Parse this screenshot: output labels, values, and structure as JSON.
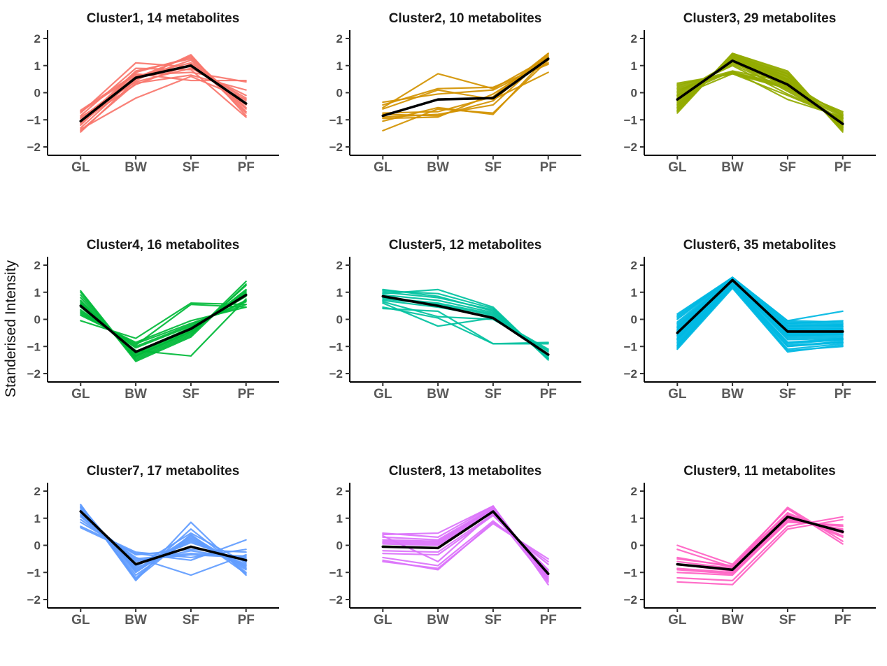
{
  "figure": {
    "ylabel": "Standerised Intensity",
    "x_categories": [
      "GL",
      "BW",
      "SF",
      "PF"
    ],
    "y_tick_labels": [
      "2",
      "1",
      "0",
      "−1",
      "−2"
    ],
    "y_tick_values": [
      2,
      1,
      0,
      -1,
      -2
    ],
    "ylim": [
      -2.3,
      2.3
    ],
    "background_color": "#ffffff",
    "axis_color": "#000000",
    "tick_color": "#333333",
    "y_tick_label_color": "#4d4d4d",
    "x_tick_label_color": "#595959",
    "title_color": "#1a1a1a",
    "mean_line_color": "#000000"
  },
  "chart_data": [
    {
      "type": "line",
      "title": "Cluster1, 14 metabolites",
      "cluster": "Cluster1",
      "n_metabolites": 14,
      "color": "#F8766D",
      "mean": [
        -1.05,
        0.55,
        1.0,
        -0.4
      ],
      "members": [
        [
          -1.2,
          0.75,
          1.3,
          -0.55
        ],
        [
          -0.95,
          0.6,
          1.1,
          -0.3
        ],
        [
          -1.45,
          0.45,
          1.4,
          -0.85
        ],
        [
          -0.75,
          1.1,
          0.95,
          -0.2
        ],
        [
          -1.1,
          0.8,
          1.25,
          -0.6
        ],
        [
          -0.9,
          0.4,
          0.9,
          -0.1
        ],
        [
          -1.3,
          0.55,
          1.35,
          -0.7
        ],
        [
          -0.7,
          0.65,
          0.75,
          0.4
        ],
        [
          -1.05,
          0.3,
          1.05,
          -0.45
        ],
        [
          -1.35,
          -0.2,
          0.6,
          -0.25
        ],
        [
          -0.85,
          0.9,
          0.85,
          -0.9
        ],
        [
          -1.15,
          0.5,
          1.2,
          -0.75
        ],
        [
          -0.65,
          0.7,
          0.45,
          0.45
        ],
        [
          -1.4,
          0.35,
          0.65,
          0.1
        ]
      ]
    },
    {
      "type": "line",
      "title": "Cluster2, 10 metabolites",
      "cluster": "Cluster2",
      "n_metabolites": 10,
      "color": "#D39200",
      "mean": [
        -0.85,
        -0.25,
        -0.2,
        1.25
      ],
      "members": [
        [
          -0.55,
          0.7,
          0.15,
          1.3
        ],
        [
          -0.8,
          -0.85,
          -0.3,
          1.45
        ],
        [
          -1.4,
          -0.6,
          -0.75,
          1.2
        ],
        [
          -0.45,
          0.15,
          0.2,
          1.05
        ],
        [
          -0.9,
          -0.8,
          -0.45,
          1.4
        ],
        [
          -0.6,
          0.1,
          -0.25,
          0.75
        ],
        [
          -1.05,
          -0.55,
          -0.8,
          1.35
        ],
        [
          -0.35,
          -0.05,
          0.1,
          1.1
        ],
        [
          -0.75,
          -0.7,
          -0.15,
          1.45
        ],
        [
          -0.95,
          -0.9,
          -0.05,
          1.25
        ]
      ]
    },
    {
      "type": "line",
      "title": "Cluster3, 29 metabolites",
      "cluster": "Cluster3",
      "n_metabolites": 29,
      "color": "#93AA00",
      "mean": [
        -0.25,
        1.18,
        0.3,
        -1.15
      ],
      "members": [
        [
          -0.45,
          1.3,
          0.45,
          -1.25
        ],
        [
          -0.1,
          1.1,
          0.25,
          -1.05
        ],
        [
          -0.65,
          1.4,
          0.6,
          -1.35
        ],
        [
          0.1,
          0.75,
          0.15,
          -0.9
        ],
        [
          -0.3,
          1.25,
          0.35,
          -1.2
        ],
        [
          -0.55,
          1.35,
          0.7,
          -1.3
        ],
        [
          0.25,
          0.8,
          0.4,
          -0.85
        ],
        [
          -0.2,
          1.2,
          0.2,
          -1.1
        ],
        [
          -0.7,
          1.45,
          0.75,
          -1.4
        ],
        [
          0.0,
          1.05,
          0.1,
          -1.0
        ],
        [
          -0.4,
          1.3,
          0.5,
          -1.25
        ],
        [
          -0.15,
          0.7,
          -0.1,
          -0.95
        ],
        [
          -0.6,
          1.4,
          0.65,
          -1.35
        ],
        [
          0.2,
          0.75,
          0.3,
          -0.8
        ],
        [
          -0.35,
          1.25,
          0.45,
          -1.2
        ],
        [
          -0.05,
          1.15,
          0.05,
          -1.05
        ],
        [
          -0.75,
          1.45,
          0.8,
          -1.45
        ],
        [
          0.3,
          0.7,
          0.25,
          -0.75
        ],
        [
          -0.25,
          1.2,
          0.4,
          -1.15
        ],
        [
          -0.5,
          1.35,
          0.55,
          -1.3
        ],
        [
          0.05,
          1.0,
          -0.05,
          -0.95
        ],
        [
          -0.45,
          1.3,
          0.6,
          -1.25
        ],
        [
          -0.1,
          0.8,
          -0.25,
          -0.9
        ],
        [
          -0.65,
          1.4,
          0.7,
          -1.35
        ],
        [
          0.15,
          0.75,
          0.2,
          -0.85
        ],
        [
          -0.3,
          1.25,
          0.35,
          -1.2
        ],
        [
          -0.55,
          1.35,
          0.5,
          -1.3
        ],
        [
          0.35,
          0.7,
          0.15,
          -0.7
        ],
        [
          -0.2,
          1.15,
          0.3,
          -1.1
        ]
      ]
    },
    {
      "type": "line",
      "title": "Cluster4, 16 metabolites",
      "cluster": "Cluster4",
      "n_metabolites": 16,
      "color": "#00BA38",
      "mean": [
        0.5,
        -1.2,
        -0.35,
        0.9
      ],
      "members": [
        [
          0.7,
          -1.35,
          -0.45,
          1.05
        ],
        [
          0.35,
          -1.05,
          -0.25,
          0.7
        ],
        [
          1.05,
          -1.5,
          -0.6,
          1.4
        ],
        [
          0.2,
          -0.9,
          -0.15,
          0.55
        ],
        [
          0.6,
          -1.3,
          -0.4,
          0.95
        ],
        [
          0.9,
          -1.45,
          -0.55,
          1.25
        ],
        [
          0.15,
          -0.85,
          -0.05,
          0.45
        ],
        [
          0.55,
          -1.25,
          -0.35,
          0.85
        ],
        [
          0.8,
          -1.4,
          -0.5,
          1.1
        ],
        [
          0.3,
          -1.0,
          -0.2,
          0.65
        ],
        [
          -0.05,
          -0.7,
          0.6,
          0.55
        ],
        [
          0.65,
          -1.35,
          -0.45,
          1.0
        ],
        [
          0.45,
          -1.15,
          -1.35,
          0.75
        ],
        [
          1.0,
          -1.55,
          -0.65,
          1.3
        ],
        [
          0.25,
          -0.95,
          0.55,
          0.45
        ],
        [
          0.5,
          -1.2,
          -0.3,
          0.9
        ]
      ]
    },
    {
      "type": "line",
      "title": "Cluster5, 12 metabolites",
      "cluster": "Cluster5",
      "n_metabolites": 12,
      "color": "#00C19F",
      "mean": [
        0.85,
        0.5,
        0.05,
        -1.3
      ],
      "members": [
        [
          1.1,
          0.85,
          0.3,
          -1.45
        ],
        [
          0.7,
          0.45,
          0.1,
          -1.2
        ],
        [
          0.95,
          1.1,
          0.45,
          -1.5
        ],
        [
          0.45,
          0.05,
          -0.9,
          -0.85
        ],
        [
          0.8,
          0.6,
          0.2,
          -1.35
        ],
        [
          1.05,
          0.95,
          0.4,
          -1.45
        ],
        [
          0.6,
          -0.25,
          0.05,
          -1.1
        ],
        [
          0.9,
          0.7,
          0.25,
          -1.4
        ],
        [
          0.4,
          0.3,
          -0.9,
          -0.9
        ],
        [
          0.75,
          0.55,
          0.15,
          -1.3
        ],
        [
          1.0,
          0.8,
          0.35,
          -1.45
        ],
        [
          0.65,
          0.1,
          0.0,
          -1.15
        ]
      ]
    },
    {
      "type": "line",
      "title": "Cluster6, 35 metabolites",
      "cluster": "Cluster6",
      "n_metabolites": 35,
      "color": "#00B9E3",
      "mean": [
        -0.5,
        1.45,
        -0.45,
        -0.45
      ],
      "members": [
        [
          -0.3,
          1.5,
          -0.35,
          -0.4
        ],
        [
          -0.75,
          1.35,
          -0.6,
          -0.55
        ],
        [
          -0.1,
          1.55,
          -0.2,
          -0.25
        ],
        [
          -0.95,
          1.25,
          -0.85,
          -0.7
        ],
        [
          -0.45,
          1.45,
          -0.45,
          -0.45
        ],
        [
          -0.6,
          1.4,
          -0.55,
          -0.5
        ],
        [
          0.05,
          1.55,
          -0.15,
          -0.2
        ],
        [
          -1.05,
          1.2,
          -1.0,
          -0.8
        ],
        [
          -0.35,
          1.5,
          -0.4,
          -0.35
        ],
        [
          -0.7,
          1.35,
          -0.65,
          -0.6
        ],
        [
          0.15,
          1.55,
          -0.1,
          -0.15
        ],
        [
          -0.85,
          1.3,
          -0.9,
          -0.75
        ],
        [
          -0.5,
          1.45,
          -0.5,
          -0.45
        ],
        [
          -0.25,
          1.5,
          -0.3,
          -0.3
        ],
        [
          -1.1,
          1.15,
          -1.2,
          -0.95
        ],
        [
          -0.4,
          1.45,
          -0.4,
          -0.4
        ],
        [
          -0.65,
          1.4,
          -0.6,
          -0.55
        ],
        [
          0.1,
          1.55,
          -0.05,
          -0.1
        ],
        [
          -0.9,
          1.25,
          -0.95,
          -0.85
        ],
        [
          -0.55,
          1.4,
          -0.55,
          -0.5
        ],
        [
          -0.15,
          1.5,
          -0.25,
          -0.25
        ],
        [
          -1.0,
          1.2,
          -1.1,
          -0.9
        ],
        [
          -0.45,
          1.45,
          -0.45,
          -0.4
        ],
        [
          -0.7,
          1.35,
          -0.7,
          -0.65
        ],
        [
          0.0,
          1.55,
          -0.15,
          -0.05
        ],
        [
          -0.8,
          1.3,
          -0.85,
          -0.75
        ],
        [
          -0.5,
          1.45,
          -0.5,
          -0.45
        ],
        [
          -0.3,
          1.5,
          -0.35,
          -0.35
        ],
        [
          -1.05,
          1.2,
          -1.15,
          -1.0
        ],
        [
          -0.6,
          1.4,
          -0.6,
          -0.55
        ],
        [
          -0.2,
          1.5,
          -0.25,
          -0.2
        ],
        [
          -0.95,
          1.25,
          -1.0,
          -0.85
        ],
        [
          -0.4,
          1.45,
          -0.45,
          -0.4
        ],
        [
          -0.75,
          1.35,
          -0.75,
          -0.7
        ],
        [
          0.2,
          1.55,
          -0.05,
          0.3
        ]
      ]
    },
    {
      "type": "line",
      "title": "Cluster7, 17 metabolites",
      "cluster": "Cluster7",
      "n_metabolites": 17,
      "color": "#619CFF",
      "mean": [
        1.25,
        -0.7,
        -0.05,
        -0.55
      ],
      "members": [
        [
          1.45,
          -0.95,
          0.2,
          -0.75
        ],
        [
          1.1,
          -0.5,
          -0.3,
          -0.4
        ],
        [
          1.5,
          -1.3,
          0.85,
          -1.1
        ],
        [
          0.85,
          -0.35,
          -0.15,
          -0.25
        ],
        [
          1.3,
          -0.8,
          0.45,
          -0.65
        ],
        [
          1.4,
          -1.1,
          0.3,
          -0.9
        ],
        [
          0.7,
          -0.25,
          -0.45,
          -0.15
        ],
        [
          1.25,
          -0.75,
          0.1,
          -0.6
        ],
        [
          1.45,
          -1.2,
          0.6,
          -1.0
        ],
        [
          0.95,
          -0.45,
          -1.1,
          -0.35
        ],
        [
          1.35,
          -0.9,
          0.25,
          -0.8
        ],
        [
          1.15,
          -0.6,
          -0.2,
          -0.5
        ],
        [
          1.5,
          -1.25,
          0.4,
          -1.05
        ],
        [
          0.65,
          -0.3,
          -0.55,
          0.2
        ],
        [
          1.3,
          -0.85,
          0.15,
          -0.7
        ],
        [
          1.05,
          -0.55,
          -0.35,
          -0.45
        ],
        [
          1.4,
          -1.0,
          0.35,
          -0.85
        ]
      ]
    },
    {
      "type": "line",
      "title": "Cluster8, 13 metabolites",
      "cluster": "Cluster8",
      "n_metabolites": 13,
      "color": "#DB72FB",
      "mean": [
        -0.05,
        -0.1,
        1.25,
        -1.05
      ],
      "members": [
        [
          0.15,
          0.1,
          1.35,
          -1.15
        ],
        [
          -0.3,
          -0.35,
          1.1,
          -0.9
        ],
        [
          0.45,
          0.3,
          1.45,
          -1.3
        ],
        [
          -0.55,
          -0.9,
          0.85,
          -0.6
        ],
        [
          0.05,
          0.0,
          1.25,
          -1.05
        ],
        [
          0.3,
          0.2,
          1.4,
          -1.25
        ],
        [
          -0.45,
          -0.75,
          0.9,
          -0.7
        ],
        [
          0.1,
          0.05,
          1.3,
          -1.1
        ],
        [
          0.4,
          0.45,
          1.45,
          -1.45
        ],
        [
          -0.6,
          -0.85,
          0.8,
          -0.5
        ],
        [
          0.2,
          0.15,
          1.35,
          -1.2
        ],
        [
          -0.2,
          -0.25,
          1.15,
          -0.95
        ],
        [
          0.35,
          -0.6,
          1.2,
          -1.35
        ]
      ]
    },
    {
      "type": "line",
      "title": "Cluster9, 11 metabolites",
      "cluster": "Cluster9",
      "n_metabolites": 11,
      "color": "#FF61C3",
      "mean": [
        -0.7,
        -0.9,
        1.05,
        0.5
      ],
      "members": [
        [
          -0.5,
          -0.75,
          1.2,
          0.35
        ],
        [
          -1.0,
          -1.1,
          0.9,
          0.7
        ],
        [
          -0.15,
          -0.8,
          1.4,
          0.15
        ],
        [
          -1.35,
          -1.45,
          0.6,
          0.95
        ],
        [
          -0.6,
          -0.85,
          1.1,
          0.45
        ],
        [
          -0.85,
          -1.0,
          0.95,
          0.6
        ],
        [
          0.0,
          -0.7,
          1.35,
          0.05
        ],
        [
          -1.2,
          -1.3,
          0.7,
          1.05
        ],
        [
          -0.45,
          -0.8,
          1.15,
          0.3
        ],
        [
          -0.9,
          -1.05,
          0.85,
          0.75
        ],
        [
          -0.7,
          -0.95,
          1.0,
          0.55
        ]
      ]
    }
  ]
}
